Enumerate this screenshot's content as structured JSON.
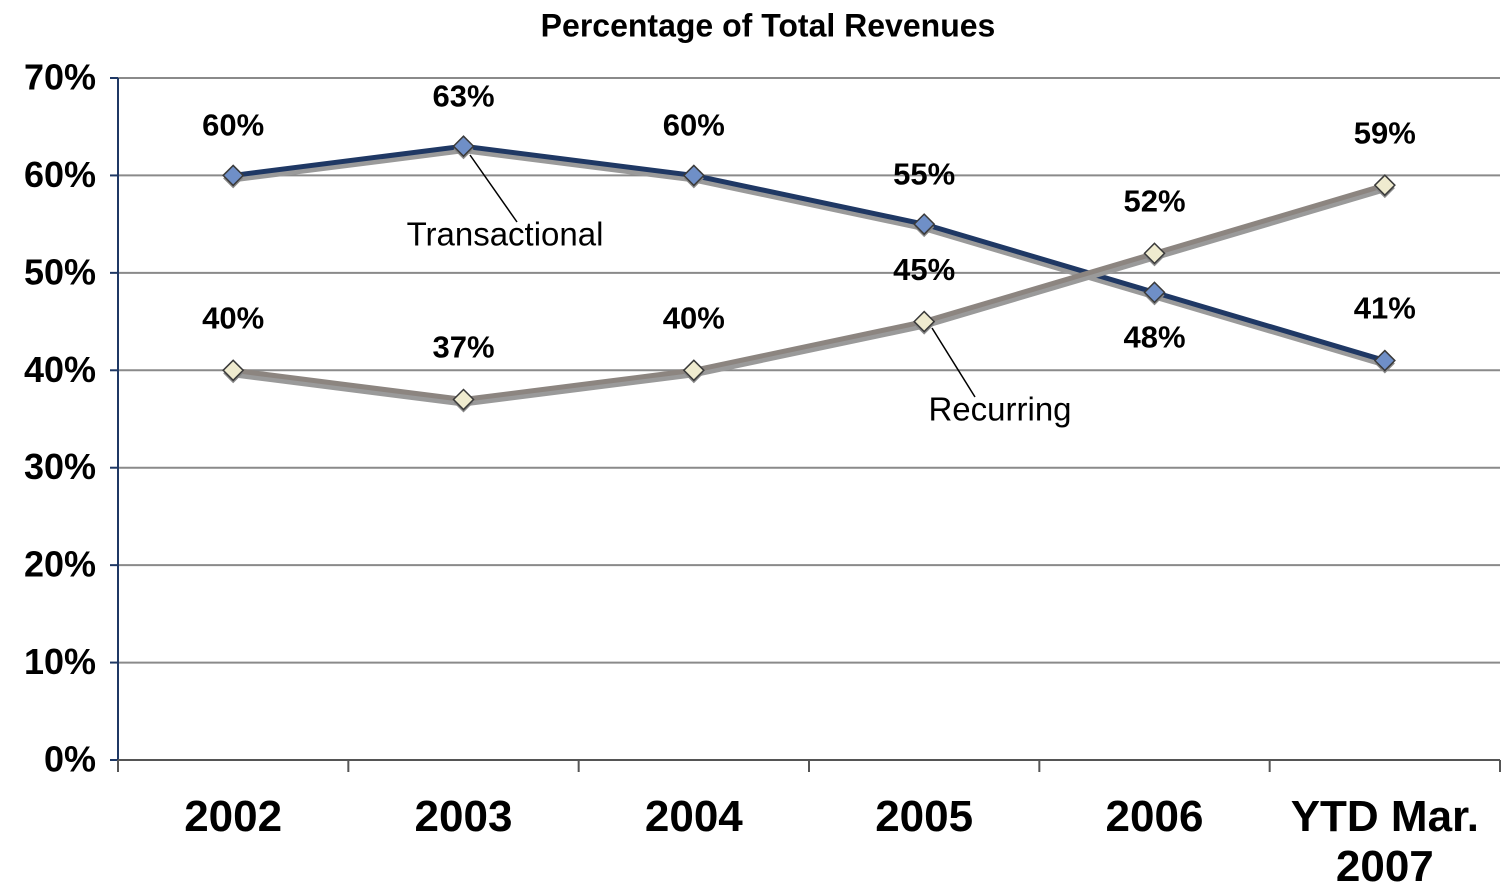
{
  "chart_data": {
    "type": "line",
    "title": "Percentage of Total Revenues",
    "categories": [
      "2002",
      "2003",
      "2004",
      "2005",
      "2006",
      "YTD Mar. 2007"
    ],
    "series": [
      {
        "name": "Transactional",
        "color": "#1f3864",
        "marker_color": "#6f8fc7",
        "values": [
          60,
          63,
          60,
          55,
          48,
          41
        ],
        "value_labels": [
          "60%",
          "63%",
          "60%",
          "55%",
          "48%",
          "41%"
        ]
      },
      {
        "name": "Recurring",
        "color": "#8c8580",
        "marker_color": "#efebcf",
        "values": [
          40,
          37,
          40,
          45,
          52,
          59
        ],
        "value_labels": [
          "40%",
          "37%",
          "40%",
          "45%",
          "52%",
          "59%"
        ]
      }
    ],
    "ylim": [
      0,
      70
    ],
    "yticks": [
      {
        "value": 0,
        "label": "0%"
      },
      {
        "value": 10,
        "label": "10%"
      },
      {
        "value": 20,
        "label": "20%"
      },
      {
        "value": 30,
        "label": "30%"
      },
      {
        "value": 40,
        "label": "40%"
      },
      {
        "value": 50,
        "label": "50%"
      },
      {
        "value": 60,
        "label": "60%"
      },
      {
        "value": 70,
        "label": "70%"
      }
    ],
    "grid": true
  }
}
